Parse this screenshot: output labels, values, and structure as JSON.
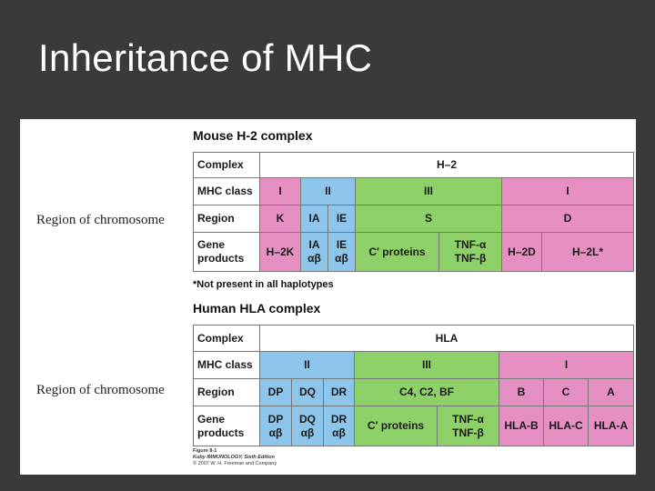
{
  "title": "Inheritance of MHC",
  "region_of_chromosome_label": "Region of chromosome",
  "mouse": {
    "heading": "Mouse H-2 complex",
    "row_labels": [
      "Complex",
      "MHC class",
      "Region",
      "Gene\nproducts"
    ],
    "complex": "H–2",
    "classes": [
      "I",
      "II",
      "III",
      "I"
    ],
    "regions": [
      "K",
      "IA",
      "IE",
      "S",
      "D"
    ],
    "products": [
      "H–2K",
      "IA\nαβ",
      "IE\nαβ",
      "C′ proteins",
      "TNF-α\nTNF-β",
      "H–2D",
      "H–2L*"
    ],
    "footnote": "*Not present in all haplotypes"
  },
  "human": {
    "heading": "Human HLA complex",
    "row_labels": [
      "Complex",
      "MHC class",
      "Region",
      "Gene\nproducts"
    ],
    "complex": "HLA",
    "classes": [
      "II",
      "III",
      "I"
    ],
    "regions": [
      "DP",
      "DQ",
      "DR",
      "C4, C2, BF",
      "B",
      "C",
      "A"
    ],
    "products": [
      "DP\nαβ",
      "DQ\nαβ",
      "DR\nαβ",
      "C′ proteins",
      "TNF-α\nTNF-β",
      "HLA-B",
      "HLA-C",
      "HLA-A"
    ]
  },
  "caption": {
    "figure": "Figure 8-1",
    "source": "Kuby IMMUNOLOGY, Sixth Edition",
    "copyright": "© 2007 W. H. Freeman and Company"
  },
  "colors": {
    "class_I": "#e58fc2",
    "class_II": "#8ec5ea",
    "class_III": "#8fd169",
    "background": "#3a3a3a"
  }
}
